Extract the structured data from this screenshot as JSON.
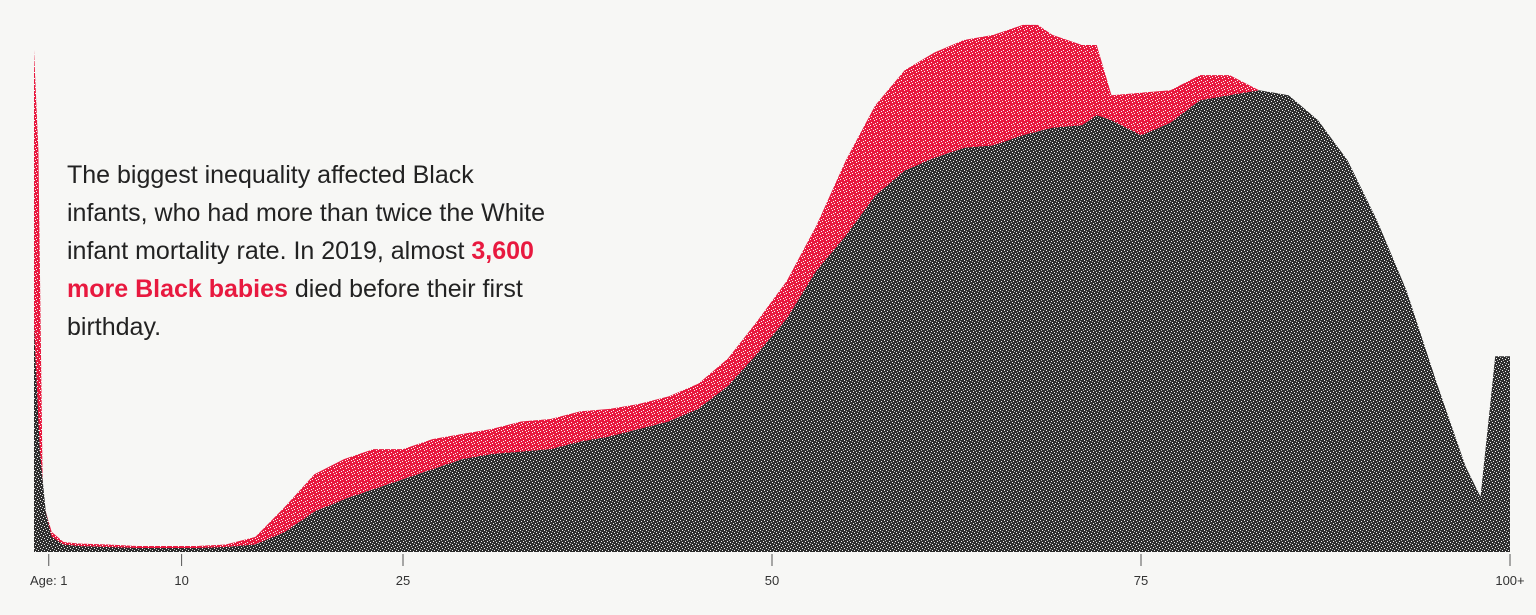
{
  "caption": {
    "before": "The biggest inequality affected Black infants, who had more than twice the White infant mortality rate. In 2019, almost ",
    "highlight": "3,600 more Black babies",
    "after": " died before their first birthday."
  },
  "colors": {
    "background": "#f7f7f5",
    "excess": "#e8193f",
    "excess_light": "#f06a85",
    "baseline": "#3a3a3a",
    "baseline_light": "#9a9a9a",
    "text": "#222222"
  },
  "chart_data": {
    "type": "area",
    "xlim": [
      0,
      100
    ],
    "ylim": [
      0,
      100
    ],
    "x_ticks": [
      {
        "value": 1,
        "label": "Age: 1"
      },
      {
        "value": 10,
        "label": "10"
      },
      {
        "value": 25,
        "label": "25"
      },
      {
        "value": 50,
        "label": "50"
      },
      {
        "value": 75,
        "label": "75"
      },
      {
        "value": 100,
        "label": "100+"
      }
    ],
    "grid": false,
    "legend": "none",
    "series": [
      {
        "role": "baseline",
        "x": [
          0,
          0.4,
          0.8,
          1.2,
          2,
          3,
          5,
          7,
          9,
          11,
          13,
          15,
          17,
          19,
          21,
          23,
          25,
          27,
          29,
          31,
          33,
          35,
          37,
          39,
          41,
          43,
          45,
          47,
          49,
          51,
          53,
          55,
          57,
          59,
          61,
          63,
          65,
          67,
          69,
          71,
          72,
          73,
          75,
          77,
          79,
          81,
          83,
          85,
          87,
          89,
          91,
          93,
          95,
          97,
          98,
          98.5,
          99,
          100
        ],
        "values": [
          45,
          20,
          8,
          3,
          1.5,
          1.2,
          1,
          0.8,
          0.8,
          0.8,
          1,
          1.5,
          4,
          8,
          10.5,
          12.5,
          14.5,
          16.5,
          18.5,
          19.5,
          20,
          20.5,
          22,
          23,
          24.5,
          26,
          28.5,
          33,
          39.5,
          46.5,
          56,
          63,
          71,
          76,
          78.5,
          80.5,
          81,
          83,
          84.5,
          85,
          87,
          86,
          83,
          85.5,
          90,
          91,
          92,
          91,
          86,
          78,
          66,
          52,
          34,
          17,
          11,
          25,
          39,
          39
        ]
      },
      {
        "role": "excess",
        "x": [
          0,
          0.3,
          0.6,
          1.2,
          2,
          3,
          5,
          7,
          9,
          11,
          13,
          15,
          17,
          19,
          21,
          23,
          25,
          27,
          29,
          31,
          33,
          35,
          37,
          39,
          41,
          43,
          45,
          47,
          49,
          51,
          53,
          55,
          57,
          59,
          61,
          63,
          65,
          67,
          68,
          69,
          71,
          72,
          73,
          75,
          77,
          79,
          81,
          83
        ],
        "values": [
          100,
          80,
          10,
          4,
          2,
          1.7,
          1.5,
          1.2,
          1.2,
          1.2,
          1.5,
          3,
          9,
          15.5,
          18.5,
          20.5,
          20.5,
          22.5,
          23.5,
          24.5,
          26,
          26.5,
          28,
          28.5,
          29.5,
          31,
          33.5,
          38.5,
          46,
          54,
          65,
          78,
          89,
          96,
          99.5,
          102,
          103,
          105,
          105,
          103,
          101,
          101,
          91,
          91.5,
          92,
          95,
          95,
          92
        ]
      }
    ]
  }
}
